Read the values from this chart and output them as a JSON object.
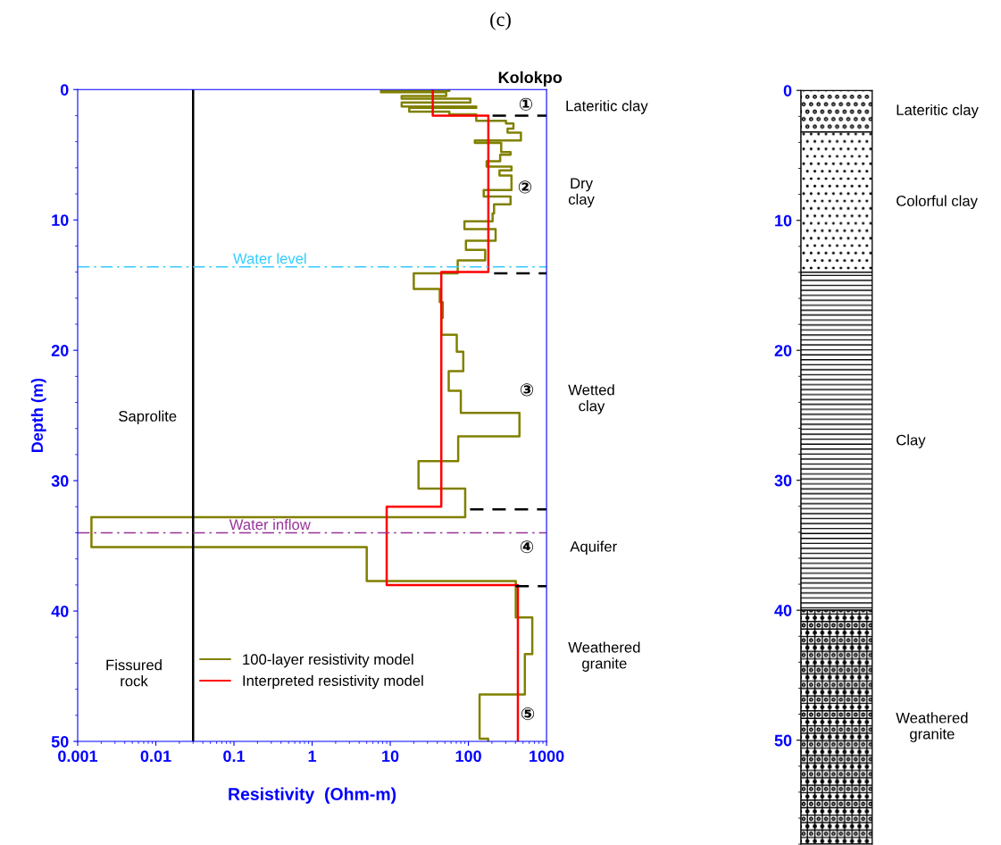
{
  "chart_data": [
    {
      "type": "line",
      "title": "(c)",
      "subtitle": "Kolokpo",
      "xlabel": "Resistivity  (Ohm-m)",
      "ylabel": "Depth (m)",
      "log": "x",
      "xlim": [
        0.001,
        1000
      ],
      "xticks": [
        0.001,
        0.01,
        0.1,
        1,
        10,
        100,
        1000
      ],
      "ylim": [
        50,
        0
      ],
      "yticks": [
        0,
        10,
        20,
        30,
        40,
        50
      ],
      "grid": false,
      "legend": "bottom",
      "series": [
        {
          "name": "100-layer resistivity model",
          "color": "#808000",
          "x": [
            57,
            57,
            7.6,
            7.6,
            52,
            52,
            14,
            14,
            106,
            106,
            14,
            14,
            126,
            126,
            17.5,
            17.5,
            57,
            57,
            126,
            126,
            303,
            303,
            377,
            377,
            317,
            317,
            470,
            470,
            121,
            121,
            263,
            263,
            346,
            346,
            255,
            255,
            171,
            171,
            356,
            356,
            250,
            250,
            356,
            356,
            157,
            157,
            346,
            346,
            213,
            213,
            204,
            204,
            89,
            89,
            223,
            223,
            93,
            93,
            164,
            164,
            73,
            73,
            20,
            20,
            43,
            43,
            47,
            47,
            45,
            45,
            71,
            71,
            86,
            86,
            56,
            56,
            80,
            80,
            450,
            450,
            74,
            74,
            23,
            23,
            91,
            91,
            0.0015,
            0.0015,
            5,
            5,
            404,
            404,
            657,
            657,
            528,
            528,
            139,
            139,
            179,
            179
          ],
          "values": [
            0,
            0.1,
            0.1,
            0.2,
            0.2,
            0.5,
            0.5,
            0.7,
            0.7,
            1.0,
            1.0,
            1.3,
            1.3,
            1.4,
            1.4,
            1.7,
            1.7,
            1.9,
            1.9,
            2.4,
            2.4,
            2.6,
            2.6,
            3.0,
            3.0,
            3.3,
            3.3,
            3.9,
            3.9,
            4.1,
            4.1,
            4.8,
            4.8,
            5.0,
            5.0,
            5.5,
            5.5,
            5.9,
            5.9,
            6.2,
            6.2,
            6.6,
            6.6,
            7.7,
            7.7,
            8.2,
            8.2,
            8.8,
            8.8,
            9.5,
            9.5,
            10.1,
            10.1,
            10.7,
            10.7,
            11.6,
            11.6,
            12.3,
            12.3,
            13.1,
            13.1,
            14.1,
            14.1,
            15.3,
            15.3,
            16.3,
            16.3,
            17.5,
            17.5,
            18.8,
            18.8,
            20.1,
            20.1,
            21.6,
            21.6,
            23.1,
            23.1,
            24.8,
            24.8,
            26.6,
            26.6,
            28.5,
            28.5,
            30.6,
            30.6,
            32.8,
            32.8,
            35.1,
            35.1,
            37.7,
            37.7,
            40.5,
            40.5,
            43.3,
            43.3,
            46.4,
            46.4,
            49.8,
            49.8,
            50
          ]
        },
        {
          "name": "Interpreted resistivity model",
          "color": "#ff0000",
          "x": [
            35,
            35,
            180,
            180,
            45,
            45,
            9,
            9,
            430,
            430
          ],
          "values": [
            0,
            2.0,
            2.0,
            14.0,
            14.0,
            32.0,
            32.0,
            38.0,
            38.0,
            50
          ]
        },
        {
          "color": "#000000",
          "line_style": "dashed",
          "x": [
            204,
            1000
          ],
          "values": [
            2.0,
            2.0
          ]
        },
        {
          "color": "#000000",
          "line_style": "dashed",
          "x": [
            213,
            1000
          ],
          "values": [
            14.1,
            14.1
          ]
        },
        {
          "color": "#000000",
          "line_style": "dashed",
          "x": [
            105,
            1000
          ],
          "values": [
            32.2,
            32.2
          ]
        },
        {
          "color": "#000000",
          "line_style": "dashed",
          "x": [
            400,
            1000
          ],
          "values": [
            38.1,
            38.1
          ]
        },
        {
          "color": "#000000",
          "x": [
            0.03,
            0.03,
            0.03
          ],
          "values": [
            0,
            40,
            50
          ]
        }
      ],
      "ref_lines": [
        {
          "axis": "y",
          "value": 13.6,
          "label": "Water level",
          "color": "#33ccff",
          "line_style": "dashdot"
        },
        {
          "axis": "y",
          "value": 34.0,
          "label": "Water inflow",
          "color": "#993399",
          "line_style": "dashdot"
        }
      ],
      "annotations": [
        "①",
        "②",
        "③",
        "④",
        "⑤",
        "Saprolite",
        "Fissured\nrock",
        "Lateritic clay",
        "Dry\nclay",
        "Wetted\nclay",
        "Aquifer",
        "Weathered\ngranite"
      ]
    },
    {
      "type": "bar",
      "stacked": true,
      "categories": [
        null
      ],
      "ylim": [
        58,
        0
      ],
      "yticks": [
        0,
        10,
        20,
        30,
        40,
        50
      ],
      "tick_labels": "y",
      "series": [
        {
          "name": "Lateritic clay",
          "color": "#000000",
          "values": [
            3.2
          ]
        },
        {
          "name": "Colorful clay",
          "color": "#000000",
          "values": [
            10.8
          ]
        },
        {
          "name": "Clay",
          "color": "#000000",
          "values": [
            26.0
          ]
        },
        {
          "name": "Weathered\ngranite",
          "color": "#000000",
          "values": [
            18.0
          ]
        }
      ]
    }
  ]
}
